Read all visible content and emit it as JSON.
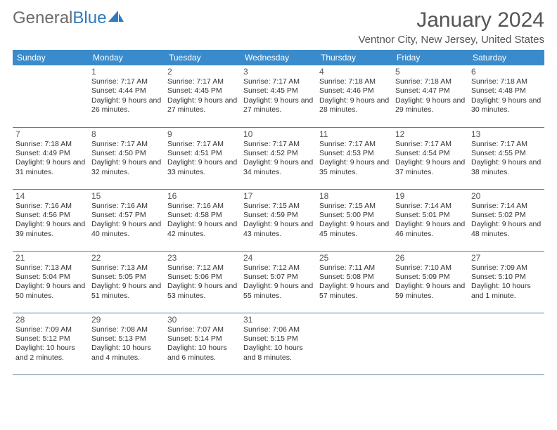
{
  "brand": {
    "part1": "General",
    "part2": "Blue"
  },
  "title": "January 2024",
  "location": "Ventnor City, New Jersey, United States",
  "colors": {
    "header_bg": "#3a8bcc",
    "header_text": "#ffffff",
    "border": "#5a7fa0",
    "text": "#333333",
    "muted": "#555555",
    "brand_gray": "#6b6b6b",
    "brand_blue": "#2f7bbf",
    "background": "#ffffff"
  },
  "day_names": [
    "Sunday",
    "Monday",
    "Tuesday",
    "Wednesday",
    "Thursday",
    "Friday",
    "Saturday"
  ],
  "weeks": [
    [
      null,
      {
        "n": "1",
        "sr": "7:17 AM",
        "ss": "4:44 PM",
        "dl": "9 hours and 26 minutes."
      },
      {
        "n": "2",
        "sr": "7:17 AM",
        "ss": "4:45 PM",
        "dl": "9 hours and 27 minutes."
      },
      {
        "n": "3",
        "sr": "7:17 AM",
        "ss": "4:45 PM",
        "dl": "9 hours and 27 minutes."
      },
      {
        "n": "4",
        "sr": "7:18 AM",
        "ss": "4:46 PM",
        "dl": "9 hours and 28 minutes."
      },
      {
        "n": "5",
        "sr": "7:18 AM",
        "ss": "4:47 PM",
        "dl": "9 hours and 29 minutes."
      },
      {
        "n": "6",
        "sr": "7:18 AM",
        "ss": "4:48 PM",
        "dl": "9 hours and 30 minutes."
      }
    ],
    [
      {
        "n": "7",
        "sr": "7:18 AM",
        "ss": "4:49 PM",
        "dl": "9 hours and 31 minutes."
      },
      {
        "n": "8",
        "sr": "7:17 AM",
        "ss": "4:50 PM",
        "dl": "9 hours and 32 minutes."
      },
      {
        "n": "9",
        "sr": "7:17 AM",
        "ss": "4:51 PM",
        "dl": "9 hours and 33 minutes."
      },
      {
        "n": "10",
        "sr": "7:17 AM",
        "ss": "4:52 PM",
        "dl": "9 hours and 34 minutes."
      },
      {
        "n": "11",
        "sr": "7:17 AM",
        "ss": "4:53 PM",
        "dl": "9 hours and 35 minutes."
      },
      {
        "n": "12",
        "sr": "7:17 AM",
        "ss": "4:54 PM",
        "dl": "9 hours and 37 minutes."
      },
      {
        "n": "13",
        "sr": "7:17 AM",
        "ss": "4:55 PM",
        "dl": "9 hours and 38 minutes."
      }
    ],
    [
      {
        "n": "14",
        "sr": "7:16 AM",
        "ss": "4:56 PM",
        "dl": "9 hours and 39 minutes."
      },
      {
        "n": "15",
        "sr": "7:16 AM",
        "ss": "4:57 PM",
        "dl": "9 hours and 40 minutes."
      },
      {
        "n": "16",
        "sr": "7:16 AM",
        "ss": "4:58 PM",
        "dl": "9 hours and 42 minutes."
      },
      {
        "n": "17",
        "sr": "7:15 AM",
        "ss": "4:59 PM",
        "dl": "9 hours and 43 minutes."
      },
      {
        "n": "18",
        "sr": "7:15 AM",
        "ss": "5:00 PM",
        "dl": "9 hours and 45 minutes."
      },
      {
        "n": "19",
        "sr": "7:14 AM",
        "ss": "5:01 PM",
        "dl": "9 hours and 46 minutes."
      },
      {
        "n": "20",
        "sr": "7:14 AM",
        "ss": "5:02 PM",
        "dl": "9 hours and 48 minutes."
      }
    ],
    [
      {
        "n": "21",
        "sr": "7:13 AM",
        "ss": "5:04 PM",
        "dl": "9 hours and 50 minutes."
      },
      {
        "n": "22",
        "sr": "7:13 AM",
        "ss": "5:05 PM",
        "dl": "9 hours and 51 minutes."
      },
      {
        "n": "23",
        "sr": "7:12 AM",
        "ss": "5:06 PM",
        "dl": "9 hours and 53 minutes."
      },
      {
        "n": "24",
        "sr": "7:12 AM",
        "ss": "5:07 PM",
        "dl": "9 hours and 55 minutes."
      },
      {
        "n": "25",
        "sr": "7:11 AM",
        "ss": "5:08 PM",
        "dl": "9 hours and 57 minutes."
      },
      {
        "n": "26",
        "sr": "7:10 AM",
        "ss": "5:09 PM",
        "dl": "9 hours and 59 minutes."
      },
      {
        "n": "27",
        "sr": "7:09 AM",
        "ss": "5:10 PM",
        "dl": "10 hours and 1 minute."
      }
    ],
    [
      {
        "n": "28",
        "sr": "7:09 AM",
        "ss": "5:12 PM",
        "dl": "10 hours and 2 minutes."
      },
      {
        "n": "29",
        "sr": "7:08 AM",
        "ss": "5:13 PM",
        "dl": "10 hours and 4 minutes."
      },
      {
        "n": "30",
        "sr": "7:07 AM",
        "ss": "5:14 PM",
        "dl": "10 hours and 6 minutes."
      },
      {
        "n": "31",
        "sr": "7:06 AM",
        "ss": "5:15 PM",
        "dl": "10 hours and 8 minutes."
      },
      null,
      null,
      null
    ]
  ]
}
